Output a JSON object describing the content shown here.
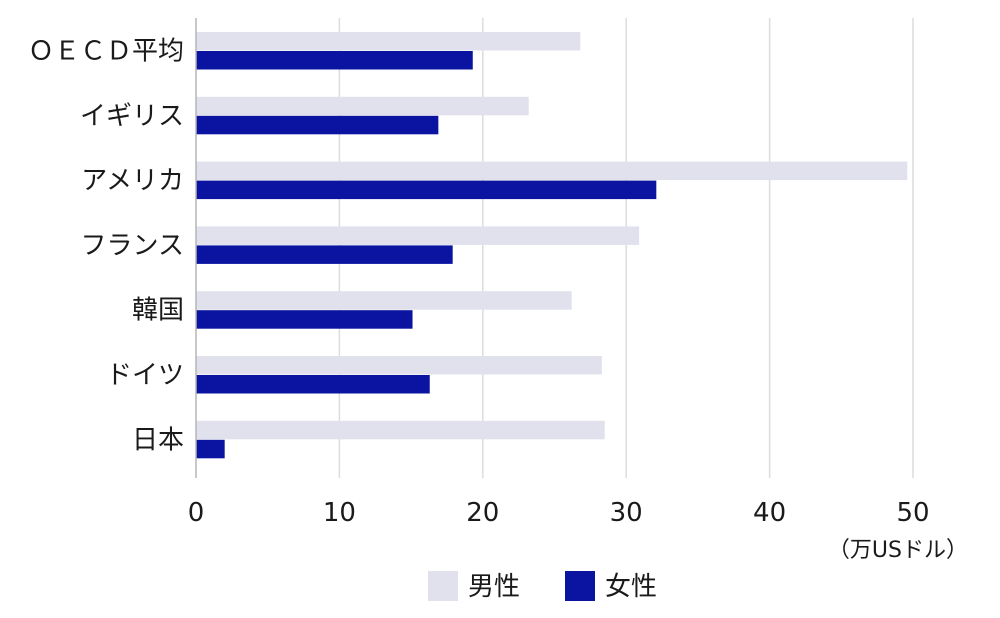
{
  "chart_data": {
    "type": "bar",
    "orientation": "horizontal",
    "categories": [
      "ＯＥＣＤ平均",
      "イギリス",
      "アメリカ",
      "フランス",
      "韓国",
      "ドイツ",
      "日本"
    ],
    "series": [
      {
        "name": "男性",
        "values": [
          26.8,
          23.2,
          49.6,
          30.9,
          26.2,
          28.3,
          28.5
        ],
        "color": "#e1e1ee"
      },
      {
        "name": "女性",
        "values": [
          19.3,
          16.9,
          32.1,
          17.9,
          15.1,
          16.3,
          2.0
        ],
        "color": "#0a14a0"
      }
    ],
    "xticks": [
      0,
      10,
      20,
      30,
      40,
      50
    ],
    "xlim": [
      0,
      50
    ],
    "unit_label": "（万USドル）",
    "grid": true,
    "legend_position": "bottom"
  }
}
